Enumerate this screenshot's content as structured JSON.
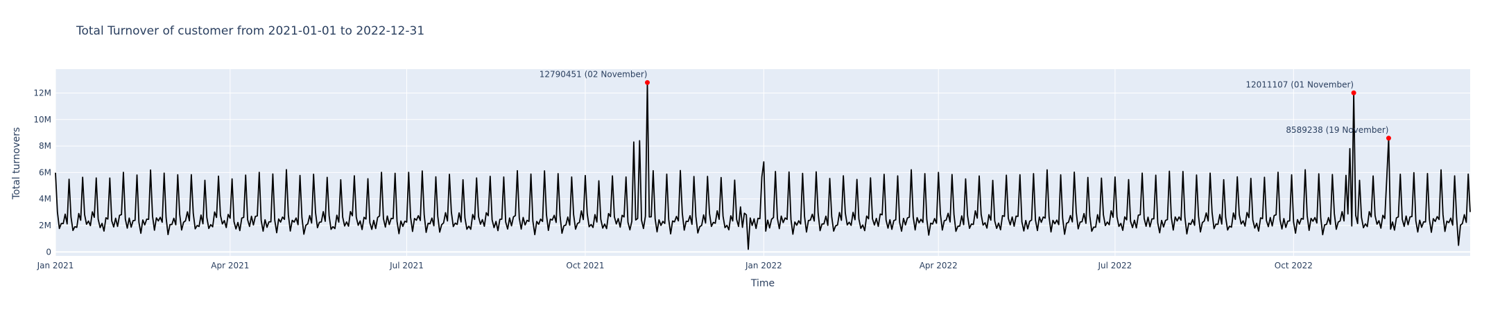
{
  "chart_data": {
    "type": "line",
    "title": "Total Turnover of customer from 2021-01-01 to 2022-12-31",
    "xlabel": "Time",
    "ylabel": "Total turnovers",
    "x_range": [
      "2021-01-01",
      "2022-12-31"
    ],
    "ylim": [
      -300000,
      13800000
    ],
    "x_ticks": [
      {
        "date": "2021-01-01",
        "label": "Jan 2021"
      },
      {
        "date": "2021-04-01",
        "label": "Apr 2021"
      },
      {
        "date": "2021-07-01",
        "label": "Jul 2021"
      },
      {
        "date": "2021-10-01",
        "label": "Oct 2021"
      },
      {
        "date": "2022-01-01",
        "label": "Jan 2022"
      },
      {
        "date": "2022-04-01",
        "label": "Apr 2022"
      },
      {
        "date": "2022-07-01",
        "label": "Jul 2022"
      },
      {
        "date": "2022-10-01",
        "label": "Oct 2022"
      }
    ],
    "y_ticks": [
      {
        "value": 0,
        "label": "0"
      },
      {
        "value": 2000000,
        "label": "2M"
      },
      {
        "value": 4000000,
        "label": "4M"
      },
      {
        "value": 6000000,
        "label": "6M"
      },
      {
        "value": 8000000,
        "label": "8M"
      },
      {
        "value": 10000000,
        "label": "10M"
      },
      {
        "value": 12000000,
        "label": "12M"
      }
    ],
    "grid": true,
    "series_color": "#000000",
    "plot_bg": "#e5ecf6",
    "series": [
      {
        "weekly_pattern": [
          5800000,
          2600000,
          1700000,
          2300000,
          2000000,
          2700000,
          2400000
        ],
        "anomaly_points": [
          {
            "date": "2021-10-26",
            "value": 8300000
          },
          {
            "date": "2021-10-29",
            "value": 8400000
          },
          {
            "date": "2021-11-02",
            "value": 12790451
          },
          {
            "date": "2021-12-20",
            "value": 3400000
          },
          {
            "date": "2021-12-24",
            "value": 200000
          },
          {
            "date": "2022-01-01",
            "value": 6800000
          },
          {
            "date": "2022-10-30",
            "value": 7800000
          },
          {
            "date": "2022-11-01",
            "value": 12011107
          },
          {
            "date": "2022-11-19",
            "value": 8589238
          },
          {
            "date": "2022-12-25",
            "value": 500000
          }
        ]
      }
    ],
    "highlight_points": [
      {
        "date": "2021-11-02",
        "value": 12790451,
        "label": "12790451 (02 November)"
      },
      {
        "date": "2022-11-01",
        "value": 12011107,
        "label": "12011107 (01 November)"
      },
      {
        "date": "2022-11-19",
        "value": 8589238,
        "label": "8589238 (19 November)"
      }
    ],
    "highlight_color": "#ff0000",
    "annotation_color": "#2a3f5f"
  }
}
